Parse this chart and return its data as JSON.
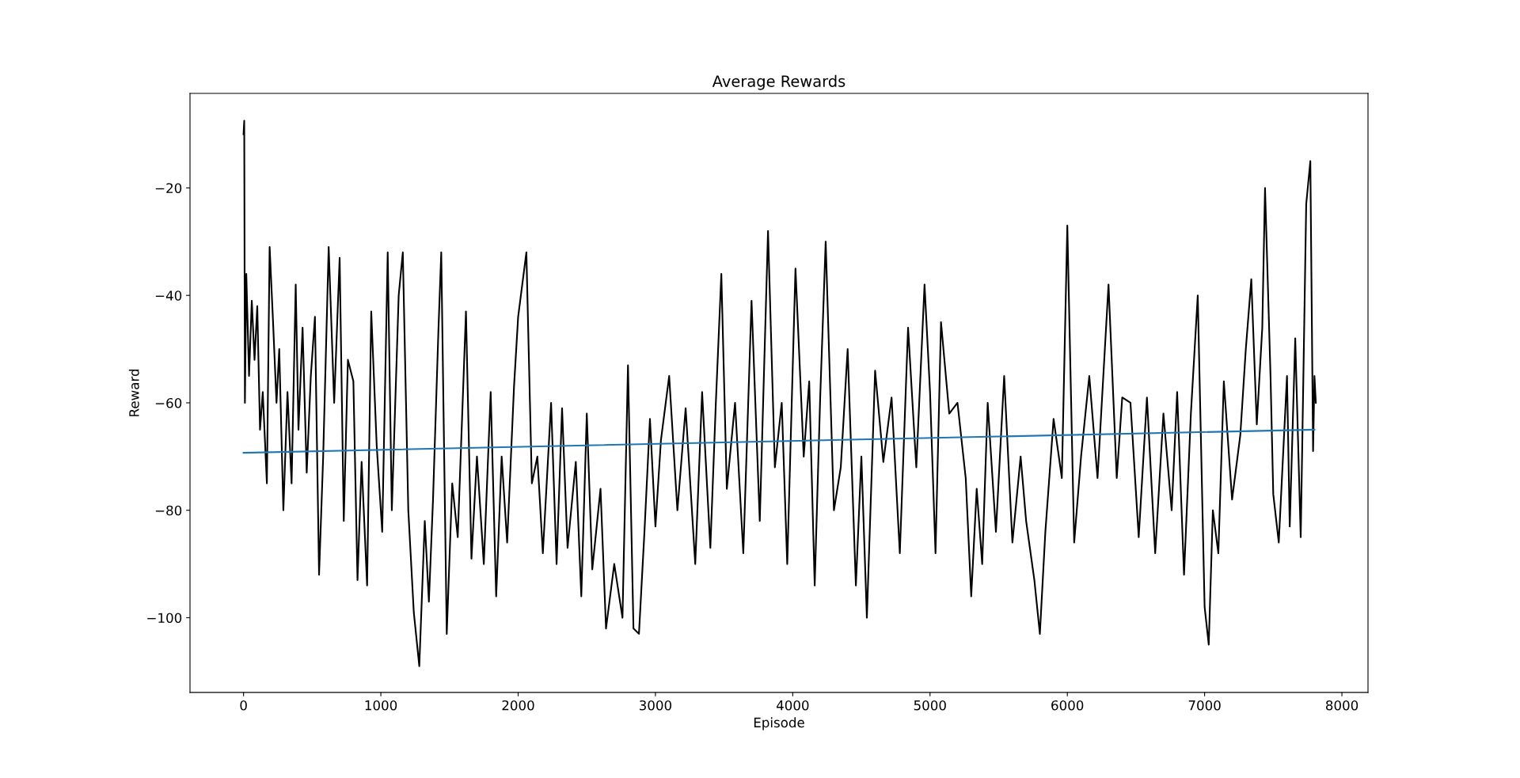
{
  "chart_data": {
    "type": "line",
    "title": "Average Rewards",
    "xlabel": "Episode",
    "ylabel": "Reward",
    "xlim": [
      -390,
      8190
    ],
    "ylim": [
      -113.9,
      -2.4
    ],
    "xticks": [
      0,
      1000,
      2000,
      3000,
      4000,
      5000,
      6000,
      7000,
      8000
    ],
    "yticks": [
      {
        "value": -100,
        "label": "−100"
      },
      {
        "value": -80,
        "label": "−80"
      },
      {
        "value": -60,
        "label": "−60"
      },
      {
        "value": -40,
        "label": "−40"
      },
      {
        "value": -20,
        "label": "−20"
      }
    ],
    "grid": false,
    "legend": false,
    "series": [
      {
        "color": "#000000",
        "x": [
          0,
          5,
          10,
          20,
          40,
          60,
          80,
          100,
          120,
          140,
          170,
          190,
          215,
          240,
          260,
          290,
          320,
          350,
          380,
          400,
          430,
          460,
          490,
          520,
          550,
          580,
          620,
          660,
          700,
          730,
          760,
          800,
          830,
          860,
          900,
          930,
          970,
          1010,
          1050,
          1080,
          1130,
          1160,
          1200,
          1240,
          1280,
          1320,
          1350,
          1380,
          1420,
          1440,
          1480,
          1520,
          1560,
          1620,
          1660,
          1700,
          1750,
          1800,
          1840,
          1880,
          1920,
          1970,
          2000,
          2060,
          2100,
          2140,
          2180,
          2240,
          2280,
          2320,
          2360,
          2420,
          2460,
          2500,
          2540,
          2600,
          2640,
          2700,
          2760,
          2800,
          2840,
          2880,
          2920,
          2960,
          3000,
          3040,
          3100,
          3160,
          3220,
          3290,
          3340,
          3400,
          3440,
          3480,
          3520,
          3580,
          3640,
          3700,
          3760,
          3820,
          3870,
          3920,
          3960,
          4020,
          4080,
          4120,
          4160,
          4200,
          4240,
          4300,
          4350,
          4400,
          4460,
          4500,
          4540,
          4600,
          4660,
          4720,
          4780,
          4840,
          4900,
          4960,
          5000,
          5040,
          5080,
          5140,
          5200,
          5260,
          5300,
          5340,
          5380,
          5420,
          5480,
          5540,
          5600,
          5660,
          5700,
          5760,
          5800,
          5840,
          5900,
          5960,
          6000,
          6050,
          6100,
          6160,
          6220,
          6300,
          6360,
          6400,
          6460,
          6520,
          6580,
          6640,
          6700,
          6760,
          6800,
          6850,
          6900,
          6950,
          7000,
          7030,
          7060,
          7100,
          7140,
          7200,
          7260,
          7300,
          7340,
          7380,
          7420,
          7440,
          7480,
          7500,
          7540,
          7600,
          7620,
          7660,
          7700,
          7740,
          7770,
          7790,
          7800,
          7810
        ],
        "values": [
          -10,
          -7.5,
          -60,
          -36,
          -55,
          -41,
          -52,
          -42,
          -65,
          -58,
          -75,
          -31,
          -45,
          -60,
          -50,
          -80,
          -58,
          -75,
          -38,
          -65,
          -46,
          -73,
          -55,
          -44,
          -92,
          -70,
          -31,
          -60,
          -33,
          -82,
          -52,
          -56,
          -93,
          -71,
          -94,
          -43,
          -68,
          -84,
          -32,
          -80,
          -40,
          -32,
          -80,
          -99,
          -109,
          -82,
          -97,
          -78,
          -46,
          -32,
          -103,
          -75,
          -85,
          -43,
          -89,
          -70,
          -90,
          -58,
          -96,
          -70,
          -86,
          -57,
          -44,
          -32,
          -75,
          -70,
          -88,
          -60,
          -90,
          -61,
          -87,
          -71,
          -96,
          -62,
          -91,
          -76,
          -102,
          -90,
          -100,
          -53,
          -102,
          -103,
          -84,
          -63,
          -83,
          -67,
          -55,
          -80,
          -61,
          -90,
          -58,
          -87,
          -60,
          -36,
          -76,
          -60,
          -88,
          -41,
          -82,
          -28,
          -72,
          -60,
          -90,
          -35,
          -70,
          -56,
          -94,
          -59,
          -30,
          -80,
          -72,
          -50,
          -94,
          -70,
          -100,
          -54,
          -71,
          -59,
          -88,
          -46,
          -72,
          -38,
          -58,
          -88,
          -45,
          -62,
          -60,
          -74,
          -96,
          -76,
          -90,
          -60,
          -84,
          -55,
          -86,
          -70,
          -82,
          -93,
          -103,
          -84,
          -63,
          -74,
          -27,
          -86,
          -70,
          -55,
          -74,
          -38,
          -74,
          -59,
          -60,
          -85,
          -59,
          -88,
          -62,
          -80,
          -58,
          -92,
          -62,
          -40,
          -98,
          -105,
          -80,
          -88,
          -56,
          -78,
          -66,
          -50,
          -37,
          -64,
          -46,
          -20,
          -55,
          -77,
          -86,
          -55,
          -83,
          -48,
          -85,
          -23,
          -15,
          -69,
          -55,
          -60
        ]
      },
      {
        "type": "line",
        "color": "#1f77b4",
        "x": [
          0,
          7800
        ],
        "values": [
          -69.3,
          -65
        ]
      }
    ]
  }
}
